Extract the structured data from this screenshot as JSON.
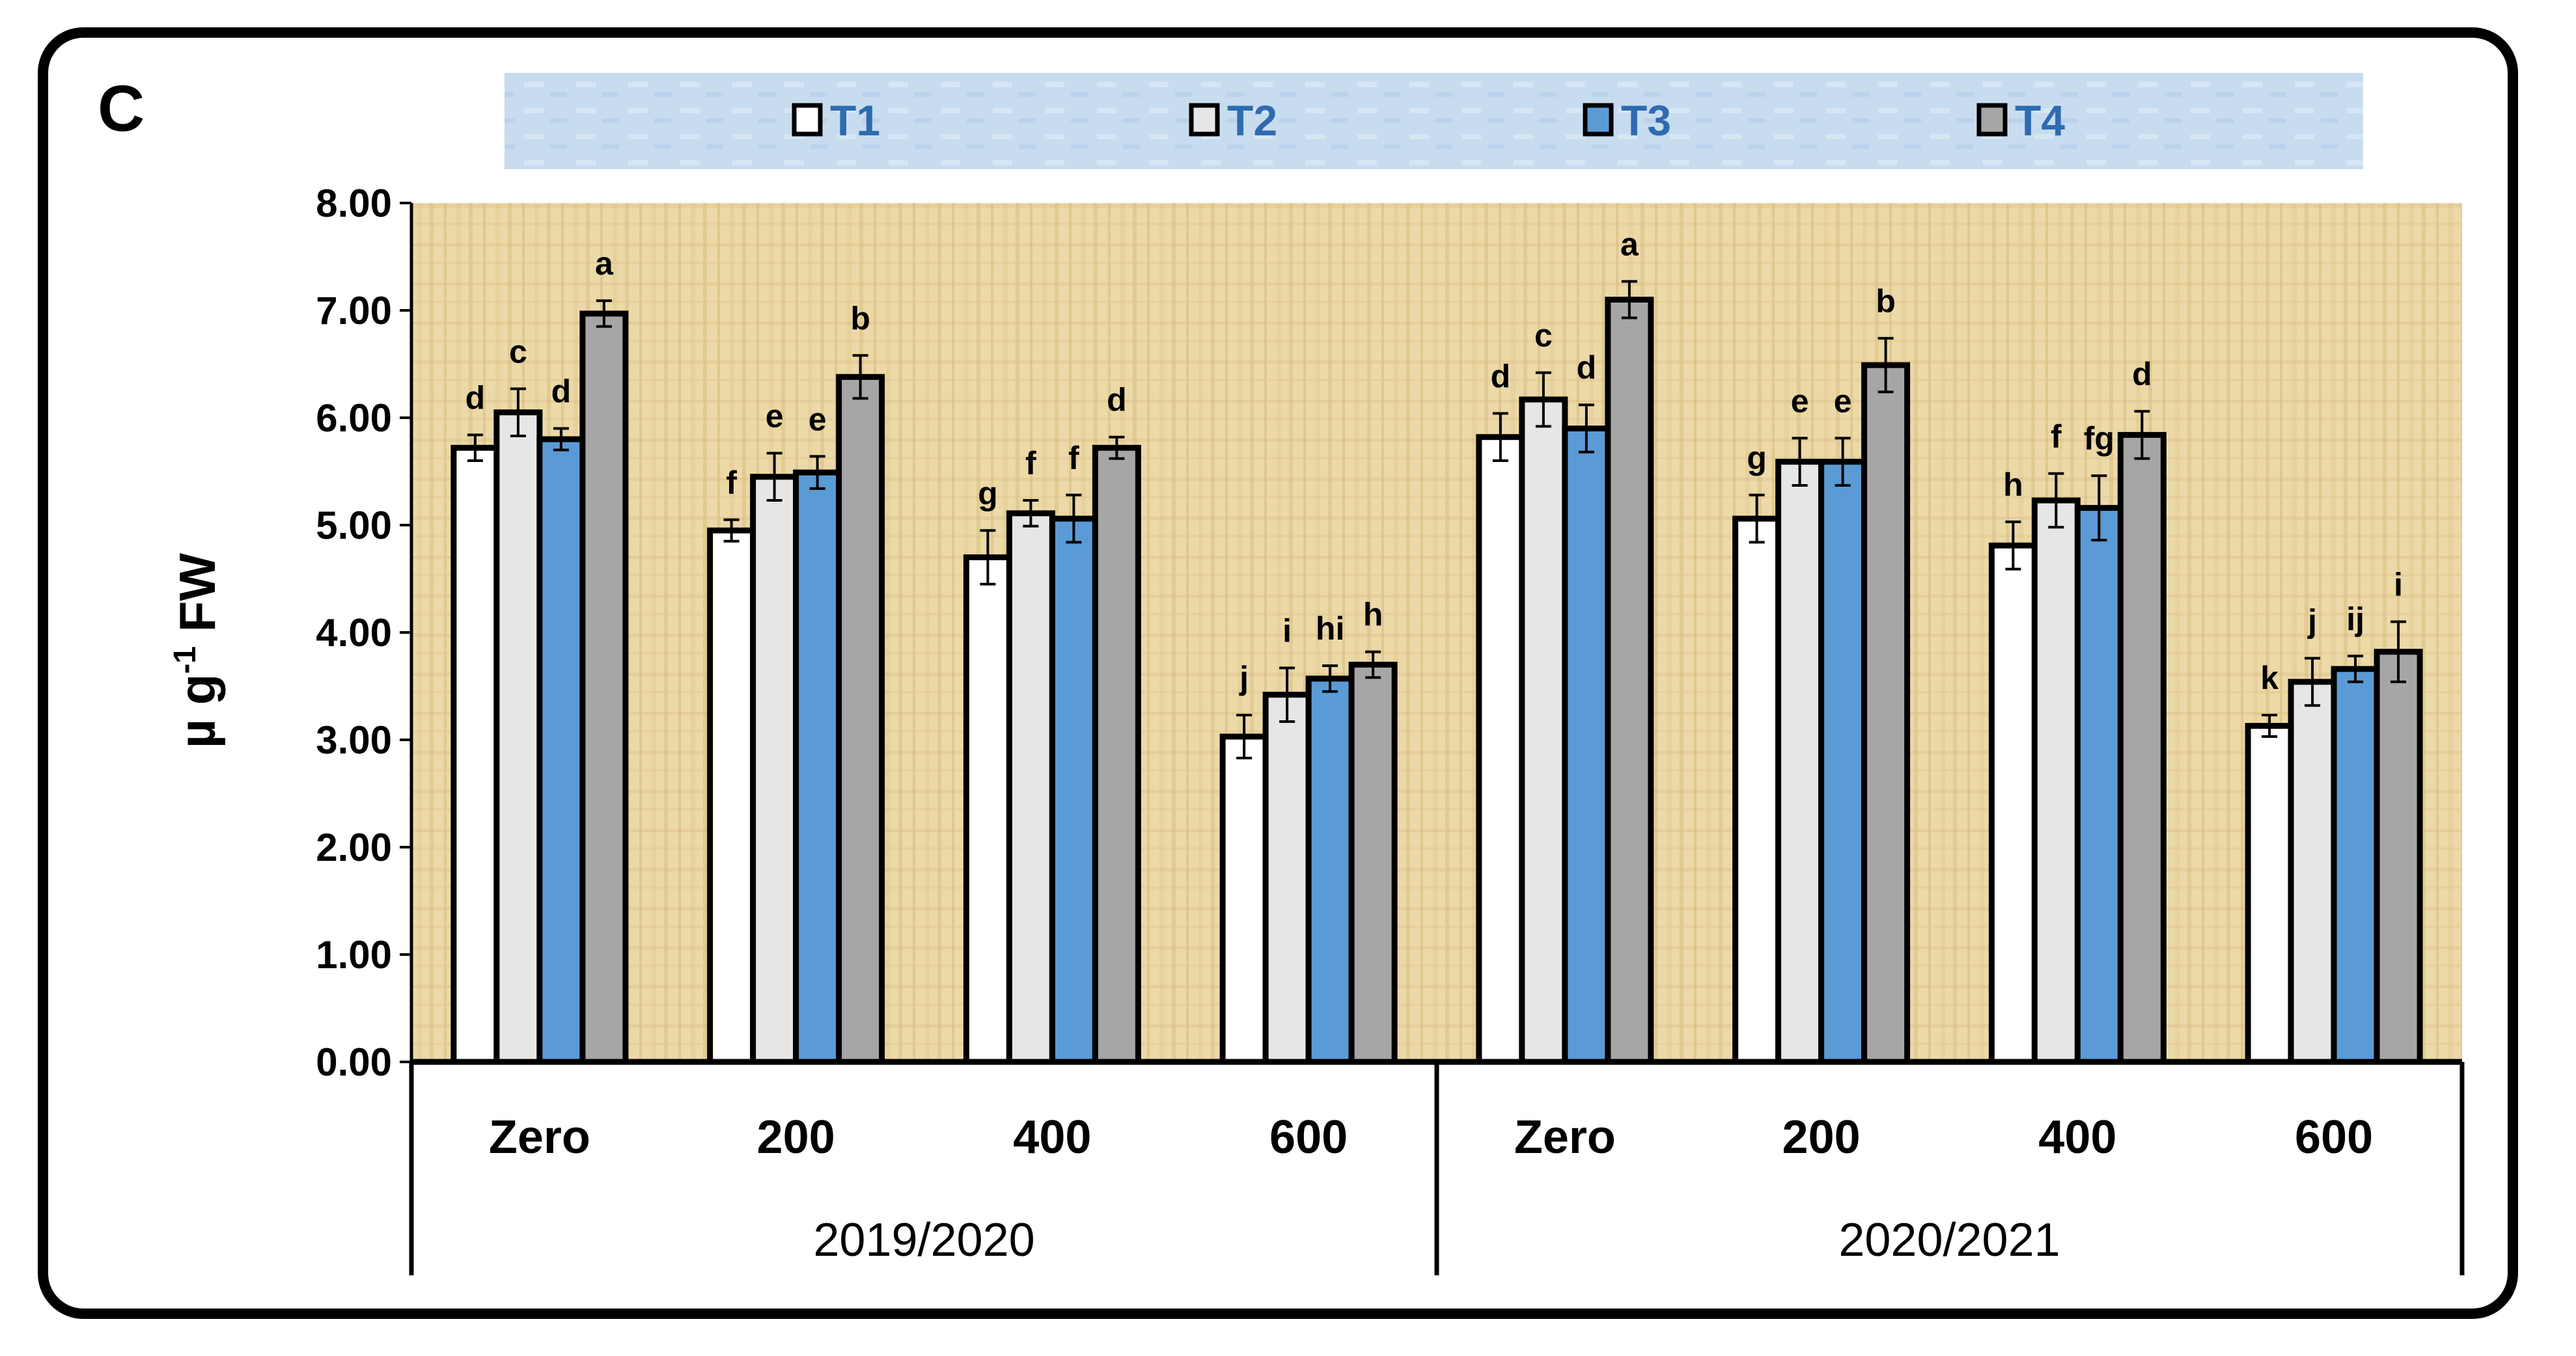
{
  "panel_label": "C",
  "chart_data": {
    "type": "bar",
    "title": "",
    "ylabel": "µ g-1 FW",
    "ylabel_parts": {
      "base": "µ g",
      "sup": "-1",
      "unit": "FW"
    },
    "xlabel": "",
    "ylim": [
      0,
      8
    ],
    "yticks": [
      "0.00",
      "1.00",
      "2.00",
      "3.00",
      "4.00",
      "5.00",
      "6.00",
      "7.00",
      "8.00"
    ],
    "groups": [
      {
        "label": "2019/2020",
        "categories": [
          "Zero",
          "200",
          "400",
          "600"
        ]
      },
      {
        "label": "2020/2021",
        "categories": [
          "Zero",
          "200",
          "400",
          "600"
        ]
      }
    ],
    "series": [
      {
        "name": "T1",
        "color": "#ffffff",
        "values": [
          5.72,
          4.95,
          4.7,
          3.03,
          5.82,
          5.06,
          4.81,
          3.13
        ],
        "errors": [
          0.12,
          0.1,
          0.25,
          0.2,
          0.22,
          0.22,
          0.22,
          0.1
        ],
        "letters": [
          "d",
          "f",
          "g",
          "j",
          "d",
          "g",
          "h",
          "k"
        ]
      },
      {
        "name": "T2",
        "color": "#e6e6e6",
        "values": [
          6.05,
          5.45,
          5.11,
          3.42,
          6.17,
          5.59,
          5.23,
          3.54
        ],
        "errors": [
          0.22,
          0.22,
          0.12,
          0.25,
          0.25,
          0.22,
          0.25,
          0.22
        ],
        "letters": [
          "c",
          "e",
          "f",
          "i",
          "c",
          "e",
          "f",
          "j"
        ]
      },
      {
        "name": "T3",
        "color": "#5b9bd5",
        "values": [
          5.8,
          5.49,
          5.06,
          3.57,
          5.9,
          5.59,
          5.16,
          3.66
        ],
        "errors": [
          0.1,
          0.15,
          0.22,
          0.12,
          0.22,
          0.22,
          0.3,
          0.12
        ],
        "letters": [
          "d",
          "e",
          "f",
          "hi",
          "d",
          "e",
          "fg",
          "ij"
        ]
      },
      {
        "name": "T4",
        "color": "#a6a6a6",
        "values": [
          6.97,
          6.38,
          5.72,
          3.7,
          7.1,
          6.49,
          5.84,
          3.82
        ],
        "errors": [
          0.12,
          0.2,
          0.1,
          0.12,
          0.17,
          0.25,
          0.22,
          0.28
        ],
        "letters": [
          "a",
          "b",
          "d",
          "h",
          "a",
          "b",
          "d",
          "i"
        ]
      }
    ],
    "legend": [
      "T1",
      "T2",
      "T3",
      "T4"
    ],
    "legend_position": "top",
    "grid": false
  }
}
